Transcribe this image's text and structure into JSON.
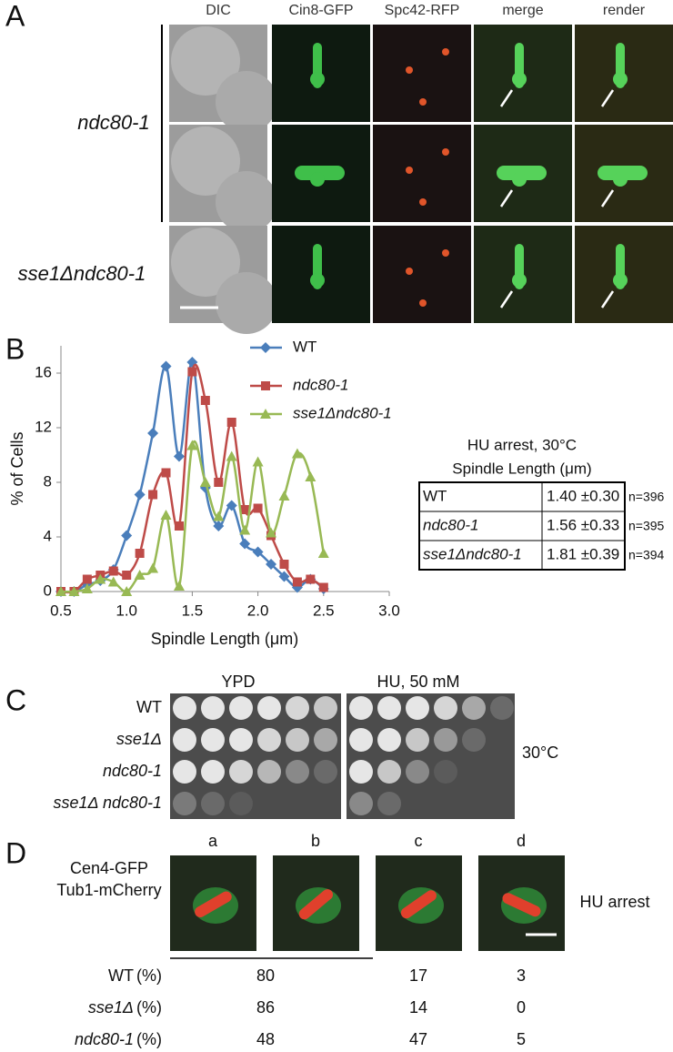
{
  "panel_a": {
    "label": "A",
    "columns": [
      "DIC",
      "Cin8-GFP",
      "Spc42-RFP",
      "merge",
      "render"
    ],
    "rows": [
      "ndc80-1",
      "sse1Δndc80-1"
    ]
  },
  "panel_b": {
    "label": "B",
    "chart_data": {
      "type": "line",
      "xlabel": "Spindle Length (μm)",
      "ylabel": "% of Cells",
      "x": [
        0.5,
        0.6,
        0.7,
        0.8,
        0.9,
        1.0,
        1.1,
        1.2,
        1.3,
        1.4,
        1.5,
        1.6,
        1.7,
        1.8,
        1.9,
        2.0,
        2.1,
        2.2,
        2.3,
        2.4,
        2.5
      ],
      "series": [
        {
          "name": "WT",
          "color": "#4a7ebb",
          "marker": "diamond",
          "values": [
            0,
            0,
            0.5,
            0.8,
            1.6,
            4.1,
            7.1,
            11.6,
            16.5,
            9.9,
            16.8,
            7.6,
            4.8,
            6.3,
            3.5,
            2.9,
            2,
            1.1,
            0.3,
            0.9,
            0.2
          ]
        },
        {
          "name": "ndc80-1",
          "color": "#be4b48",
          "marker": "square",
          "values": [
            0,
            0,
            0.9,
            1.2,
            1.5,
            1.2,
            2.8,
            7.1,
            8.7,
            4.8,
            16.1,
            14,
            8,
            12.4,
            6,
            6.1,
            4.1,
            2,
            0.7,
            0.9,
            0.3
          ]
        },
        {
          "name": "sse1Δndc80-1",
          "color": "#98b954",
          "marker": "triangle",
          "values": [
            0,
            0,
            0.2,
            0.9,
            0.7,
            0,
            1.2,
            1.7,
            5.6,
            0.4,
            10.7,
            8,
            5.5,
            9.9,
            4.5,
            9.5,
            4.3,
            7,
            10.1,
            8.4,
            2.8
          ]
        }
      ],
      "xlim": [
        0.5,
        3.0
      ],
      "xticks": [
        0.5,
        {
          "value": 1,
          "label": "1.0"
        },
        1.5,
        {
          "value": 2,
          "label": "2.0"
        },
        2.5,
        {
          "value": 3,
          "label": "3.0"
        }
      ],
      "ylim": [
        0,
        18
      ],
      "yticks": [
        0,
        4,
        8,
        12,
        16
      ],
      "grid": false
    },
    "table": {
      "title": "HU arrest, 30°C",
      "subtitle": "Spindle Length (μm)",
      "rows": [
        [
          "WT",
          "1.40 ±0.30",
          "n=396"
        ],
        [
          "ndc80-1",
          "1.56 ±0.33",
          "n=395"
        ],
        [
          "sse1Δndc80-1",
          "1.81 ±0.39",
          "n=394"
        ]
      ]
    }
  },
  "panel_c": {
    "label": "C",
    "conditions": [
      "YPD",
      "HU, 50 mM"
    ],
    "strains": [
      "WT",
      "sse1Δ",
      "ndc80-1",
      "sse1Δ ndc80-1"
    ],
    "temperature": "30°C"
  },
  "panel_d": {
    "label": "D",
    "columns": [
      "a",
      "b",
      "c",
      "d"
    ],
    "markers": [
      "Cen4-GFP",
      "Tub1-mCherry"
    ],
    "condition": "HU arrest",
    "rows": [
      {
        "strain": "WT",
        "unit": "(%)",
        "values": [
          80,
          17,
          3
        ]
      },
      {
        "strain": "sse1Δ",
        "unit": "(%)",
        "values": [
          86,
          14,
          0
        ]
      },
      {
        "strain": "ndc80-1",
        "unit": "(%)",
        "values": [
          48,
          47,
          5
        ]
      }
    ]
  }
}
